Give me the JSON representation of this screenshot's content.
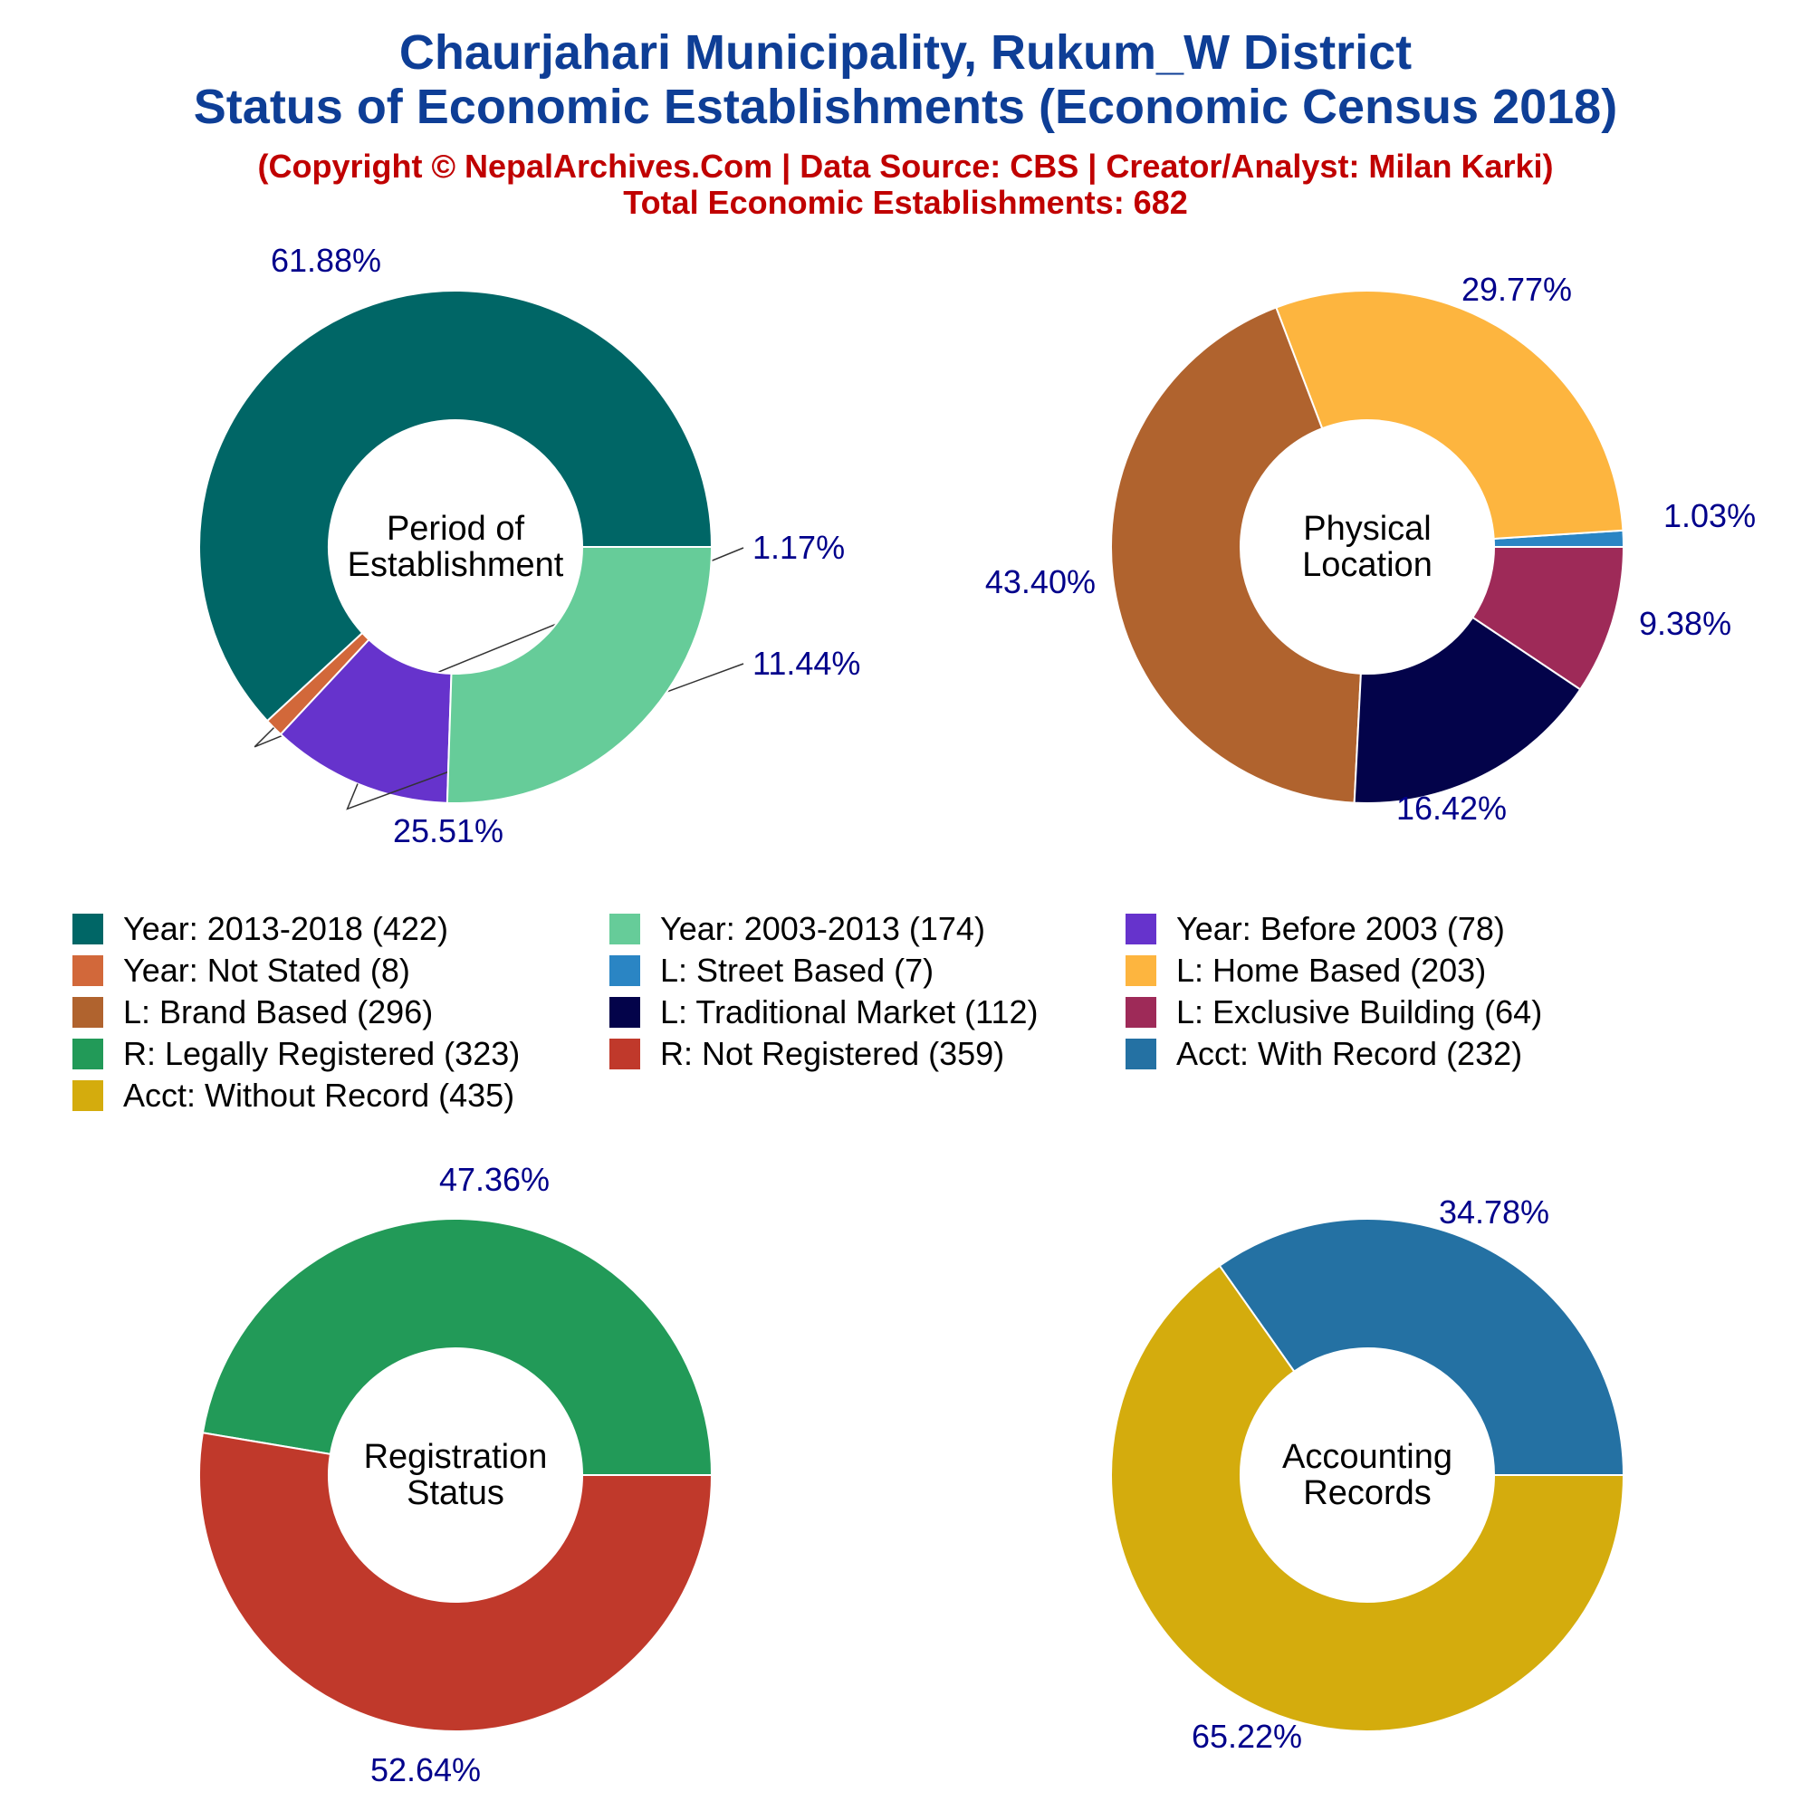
{
  "header": {
    "title_line1": "Chaurjahari Municipality, Rukum_W District",
    "title_line2": "Status of Economic Establishments (Economic Census 2018)",
    "subtitle_line1": "(Copyright © NepalArchives.Com | Data Source: CBS | Creator/Analyst: Milan Karki)",
    "subtitle_line2": "Total Economic Establishments: 682"
  },
  "chart_data": [
    {
      "type": "pie",
      "center_label": [
        "Period of",
        "Establishment"
      ],
      "slices": [
        {
          "label": "Year: 2013-2018",
          "value": 422,
          "percent_label": "61.88%",
          "color": "#006666"
        },
        {
          "label": "Year: Not Stated",
          "value": 8,
          "percent_label": "1.17%",
          "color": "#d2683a"
        },
        {
          "label": "Year: Before 2003",
          "value": 78,
          "percent_label": "11.44%",
          "color": "#6633cc"
        },
        {
          "label": "Year: 2003-2013",
          "value": 174,
          "percent_label": "25.51%",
          "color": "#66cc99"
        }
      ]
    },
    {
      "type": "pie",
      "center_label": [
        "Physical",
        "Location"
      ],
      "slices": [
        {
          "label": "L: Street Based",
          "value": 7,
          "percent_label": "1.03%",
          "color": "#2a85c4"
        },
        {
          "label": "L: Home Based",
          "value": 203,
          "percent_label": "29.77%",
          "color": "#fdb53f"
        },
        {
          "label": "L: Brand Based",
          "value": 296,
          "percent_label": "43.40%",
          "color": "#b0632e"
        },
        {
          "label": "L: Traditional Market",
          "value": 112,
          "percent_label": "16.42%",
          "color": "#03034a"
        },
        {
          "label": "L: Exclusive Building",
          "value": 64,
          "percent_label": "9.38%",
          "color": "#9e2a58"
        }
      ]
    },
    {
      "type": "pie",
      "center_label": [
        "Registration",
        "Status"
      ],
      "slices": [
        {
          "label": "R: Legally Registered",
          "value": 323,
          "percent_label": "47.36%",
          "color": "#229a58"
        },
        {
          "label": "R: Not Registered",
          "value": 359,
          "percent_label": "52.64%",
          "color": "#c0392b"
        }
      ]
    },
    {
      "type": "pie",
      "center_label": [
        "Accounting",
        "Records"
      ],
      "slices": [
        {
          "label": "Acct: With Record",
          "value": 232,
          "percent_label": "34.78%",
          "color": "#2471a3"
        },
        {
          "label": "Acct: Without Record",
          "value": 435,
          "percent_label": "65.22%",
          "color": "#d4ac0d"
        }
      ]
    }
  ],
  "legend": [
    {
      "text": "Year: 2013-2018 (422)",
      "color": "#006666"
    },
    {
      "text": "Year: 2003-2013 (174)",
      "color": "#66cc99"
    },
    {
      "text": "Year: Before 2003 (78)",
      "color": "#6633cc"
    },
    {
      "text": "Year: Not Stated (8)",
      "color": "#d2683a"
    },
    {
      "text": "L: Street Based (7)",
      "color": "#2a85c4"
    },
    {
      "text": "L: Home Based (203)",
      "color": "#fdb53f"
    },
    {
      "text": "L: Brand Based (296)",
      "color": "#b0632e"
    },
    {
      "text": "L: Traditional Market (112)",
      "color": "#03034a"
    },
    {
      "text": "L: Exclusive Building (64)",
      "color": "#9e2a58"
    },
    {
      "text": "R: Legally Registered (323)",
      "color": "#229a58"
    },
    {
      "text": "R: Not Registered (359)",
      "color": "#c0392b"
    },
    {
      "text": "Acct: With Record (232)",
      "color": "#2471a3"
    },
    {
      "text": "Acct: Without Record (435)",
      "color": "#d4ac0d"
    }
  ],
  "colors": {
    "title": "#0e3e96",
    "subtitle": "#c00000",
    "percent_label": "#00008b"
  }
}
